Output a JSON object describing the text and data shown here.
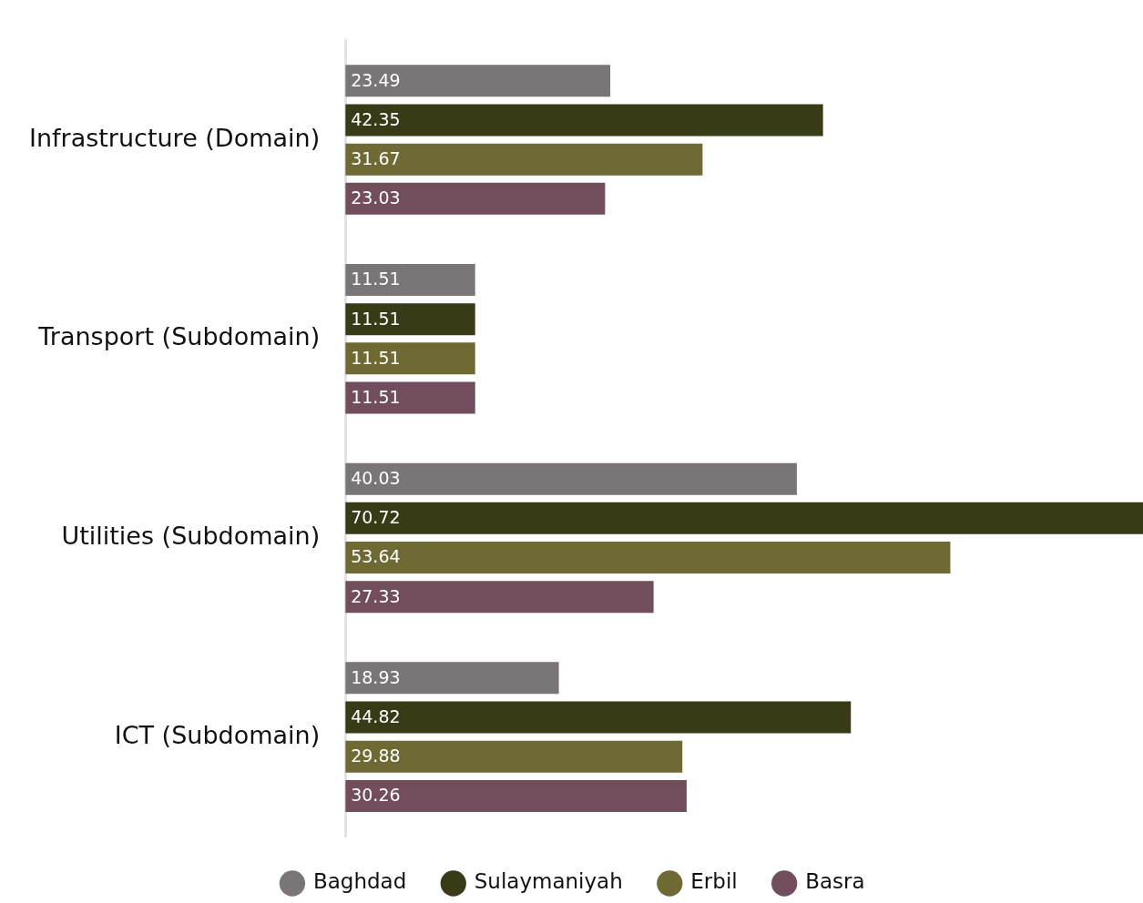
{
  "chart_data": {
    "type": "bar",
    "orientation": "horizontal",
    "categories": [
      "Infrastructure (Domain)",
      "Transport (Subdomain)",
      "Utilities (Subdomain)",
      "ICT (Subdomain)"
    ],
    "series": [
      {
        "name": "Baghdad",
        "color": "#7a7576",
        "values": [
          23.49,
          11.51,
          40.03,
          18.93
        ]
      },
      {
        "name": "Sulaymaniyah",
        "color": "#393a16",
        "values": [
          42.35,
          11.51,
          70.72,
          44.82
        ]
      },
      {
        "name": "Erbil",
        "color": "#6f6a34",
        "values": [
          31.67,
          11.51,
          53.64,
          29.88
        ]
      },
      {
        "name": "Basra",
        "color": "#724d5e",
        "values": [
          23.03,
          11.51,
          27.33,
          30.26
        ]
      }
    ],
    "data_labels": true,
    "legend": "bottom",
    "grid": false
  }
}
